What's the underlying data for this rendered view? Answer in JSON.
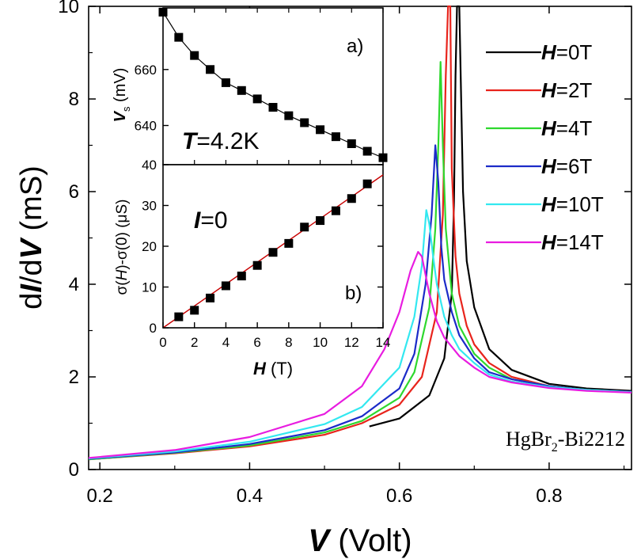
{
  "colors": {
    "axis": "#000000",
    "fit": "#c80000",
    "marker": "#000000"
  },
  "chart_data": [
    {
      "type": "line",
      "name": "main",
      "xlabel_var": "V",
      "xlabel_unit": " (Volt)",
      "ylabel_pre": "d",
      "ylabel_I": "I",
      "ylabel_mid": "/d",
      "ylabel_V": "V",
      "ylabel_unit": " (mS)",
      "xlim": [
        0.185,
        0.91
      ],
      "ylim": [
        0,
        10
      ],
      "xticks": [
        0.2,
        0.4,
        0.6,
        0.8
      ],
      "xtick_labels": [
        "0.2",
        "0.4",
        "0.6",
        "0.8"
      ],
      "yticks": [
        0,
        2,
        4,
        6,
        8,
        10
      ],
      "ytick_labels": [
        "0",
        "2",
        "4",
        "6",
        "8",
        "10"
      ],
      "annotation": {
        "text_pre": "HgBr",
        "sub": "2",
        "text_post": "-Bi2212"
      },
      "legend_position": "top-right",
      "series": [
        {
          "label_var": "H",
          "label_rest": "=0T",
          "color": "#000000",
          "x": [
            0.56,
            0.6,
            0.64,
            0.66,
            0.67,
            0.673,
            0.675,
            0.677,
            0.68,
            0.685,
            0.69,
            0.7,
            0.72,
            0.75,
            0.8,
            0.85,
            0.91
          ],
          "y": [
            0.93,
            1.1,
            1.6,
            2.4,
            3.8,
            5.8,
            8.5,
            10.5,
            10.5,
            6.0,
            4.5,
            3.5,
            2.6,
            2.15,
            1.85,
            1.75,
            1.7
          ]
        },
        {
          "label_var": "H",
          "label_rest": "=2T",
          "color": "#e8241c",
          "x": [
            0.185,
            0.3,
            0.4,
            0.5,
            0.55,
            0.6,
            0.63,
            0.65,
            0.658,
            0.662,
            0.665,
            0.668,
            0.67,
            0.675,
            0.68,
            0.69,
            0.7,
            0.72,
            0.75,
            0.8,
            0.85,
            0.91
          ],
          "y": [
            0.22,
            0.35,
            0.5,
            0.75,
            1.0,
            1.4,
            2.0,
            3.4,
            5.5,
            8.5,
            10.5,
            10.5,
            6.5,
            4.6,
            3.8,
            3.1,
            2.7,
            2.3,
            2.0,
            1.8,
            1.72,
            1.68
          ]
        },
        {
          "label_var": "H",
          "label_rest": "=4T",
          "color": "#2ed82e",
          "x": [
            0.185,
            0.3,
            0.4,
            0.5,
            0.55,
            0.6,
            0.62,
            0.64,
            0.648,
            0.652,
            0.655,
            0.658,
            0.662,
            0.67,
            0.68,
            0.7,
            0.72,
            0.75,
            0.8,
            0.85,
            0.91
          ],
          "y": [
            0.22,
            0.36,
            0.52,
            0.8,
            1.05,
            1.55,
            2.1,
            3.5,
            5.2,
            7.0,
            8.8,
            7.0,
            5.2,
            3.8,
            3.1,
            2.5,
            2.2,
            1.95,
            1.8,
            1.72,
            1.68
          ]
        },
        {
          "label_var": "H",
          "label_rest": "=6T",
          "color": "#1c2bc8",
          "x": [
            0.185,
            0.3,
            0.4,
            0.5,
            0.55,
            0.6,
            0.62,
            0.635,
            0.643,
            0.648,
            0.652,
            0.656,
            0.66,
            0.67,
            0.68,
            0.7,
            0.72,
            0.75,
            0.8,
            0.85,
            0.91
          ],
          "y": [
            0.23,
            0.37,
            0.55,
            0.85,
            1.15,
            1.75,
            2.5,
            4.0,
            5.5,
            7.0,
            6.2,
            4.8,
            4.1,
            3.4,
            2.9,
            2.4,
            2.1,
            1.95,
            1.8,
            1.72,
            1.68
          ]
        },
        {
          "label_var": "H",
          "label_rest": "=10T",
          "color": "#33e8f0",
          "x": [
            0.185,
            0.3,
            0.4,
            0.5,
            0.55,
            0.6,
            0.62,
            0.63,
            0.636,
            0.64,
            0.645,
            0.65,
            0.66,
            0.67,
            0.68,
            0.7,
            0.72,
            0.75,
            0.8,
            0.85,
            0.91
          ],
          "y": [
            0.24,
            0.39,
            0.6,
            0.98,
            1.35,
            2.2,
            3.3,
            4.4,
            5.6,
            5.3,
            4.6,
            4.0,
            3.3,
            2.9,
            2.6,
            2.3,
            2.05,
            1.9,
            1.78,
            1.72,
            1.67
          ]
        },
        {
          "label_var": "H",
          "label_rest": "=14T",
          "color": "#e81ce0",
          "x": [
            0.185,
            0.3,
            0.4,
            0.5,
            0.55,
            0.58,
            0.6,
            0.615,
            0.625,
            0.63,
            0.635,
            0.64,
            0.65,
            0.66,
            0.68,
            0.7,
            0.72,
            0.75,
            0.8,
            0.85,
            0.91
          ],
          "y": [
            0.25,
            0.42,
            0.7,
            1.2,
            1.8,
            2.6,
            3.4,
            4.3,
            4.7,
            4.6,
            4.2,
            3.8,
            3.2,
            2.85,
            2.45,
            2.2,
            2.0,
            1.88,
            1.76,
            1.7,
            1.66
          ]
        }
      ]
    },
    {
      "type": "scatter",
      "name": "inset-a",
      "panel_label": "a)",
      "ylabel_var": "V",
      "ylabel_sub": "s",
      "ylabel_unit": " (mV)",
      "xlim": [
        0,
        14
      ],
      "ylim": [
        626,
        682
      ],
      "yticks": [
        640,
        660
      ],
      "ytick_labels": [
        "640",
        "660"
      ],
      "temp_var": "T",
      "temp_rest": "=4.2K",
      "x": [
        0,
        1,
        2,
        3,
        4,
        5,
        6,
        7,
        8,
        9,
        10,
        11,
        12,
        13,
        14
      ],
      "y": [
        680.5,
        671.5,
        665,
        660,
        655.3,
        652.5,
        649.5,
        646.5,
        643.5,
        641,
        638.5,
        636,
        633.5,
        630.8,
        628.5
      ]
    },
    {
      "type": "scatter",
      "name": "inset-b",
      "panel_label": "b)",
      "ylabel_pre": "σ(",
      "ylabel_var": "H",
      "ylabel_post": ")-σ(0) (μS)",
      "xlabel_var": "H",
      "xlabel_unit": " (T)",
      "xlim": [
        0,
        14
      ],
      "ylim": [
        0,
        40
      ],
      "xticks": [
        0,
        2,
        4,
        6,
        8,
        10,
        12,
        14
      ],
      "xtick_labels": [
        "0",
        "2",
        "4",
        "6",
        "8",
        "10",
        "12",
        "14"
      ],
      "yticks": [
        0,
        10,
        20,
        30,
        40
      ],
      "ytick_labels": [
        "0",
        "10",
        "20",
        "30",
        "40"
      ],
      "current_var": "I",
      "current_rest": "=0",
      "x": [
        1,
        2,
        3,
        4,
        5,
        6,
        7,
        8,
        9,
        10,
        11,
        12,
        13
      ],
      "y": [
        2.7,
        4.3,
        7.3,
        10.3,
        12.7,
        15.3,
        18.5,
        20.7,
        24.7,
        26.3,
        28.7,
        31.7,
        35.3
      ],
      "fit": [
        [
          0,
          0
        ],
        [
          14,
          37.5
        ]
      ]
    }
  ]
}
